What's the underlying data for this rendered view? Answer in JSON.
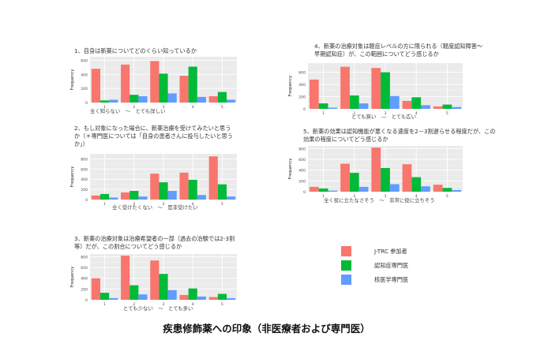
{
  "legend": [
    {
      "name": "J-TRC 参加者",
      "color": "#F8766D"
    },
    {
      "name": "認知症専門医",
      "color": "#00BA38"
    },
    {
      "name": "核医学専門医",
      "color": "#619CFF"
    }
  ],
  "caption": "疾患修飾薬への印象（非医療者および専門医）",
  "chart_data": [
    {
      "type": "bar",
      "title": "1、自身は新薬についてどのくらい知っているか",
      "xlabel": "全く知らない　～　とても詳しい",
      "ylabel": "Frequency",
      "categories": [
        "1",
        "2",
        "3",
        "4",
        "5"
      ],
      "ylim": [
        0,
        650
      ],
      "yticks": [
        0,
        200,
        400,
        600
      ],
      "series": [
        {
          "name": "J-TRC 参加者",
          "values": [
            480,
            540,
            590,
            380,
            90
          ]
        },
        {
          "name": "認知症専門医",
          "values": [
            30,
            110,
            410,
            510,
            150
          ]
        },
        {
          "name": "核医学専門医",
          "values": [
            40,
            90,
            130,
            80,
            40
          ]
        }
      ]
    },
    {
      "type": "bar",
      "title": "2、もし対象になった場合に、新薬治療を受けてみたいと思うか（＊専門医については「自身の患者さんに投与したいと思うか」）",
      "xlabel": "全く受けたくない　～　是非受けたい",
      "ylabel": "Frequency",
      "categories": [
        "1",
        "2",
        "3",
        "4",
        "5"
      ],
      "ylim": [
        0,
        900
      ],
      "yticks": [
        0,
        200,
        400,
        600,
        800
      ],
      "series": [
        {
          "name": "J-TRC 参加者",
          "values": [
            80,
            140,
            510,
            530,
            850
          ]
        },
        {
          "name": "認知症専門医",
          "values": [
            110,
            170,
            340,
            390,
            300
          ]
        },
        {
          "name": "核医学専門医",
          "values": [
            40,
            60,
            170,
            90,
            60
          ]
        }
      ]
    },
    {
      "type": "bar",
      "title": "3、新薬の治療対象は治療希望者の一部（過去の治験では2-3割等）だが、この割合についてどう感じるか",
      "xlabel": "とても少ない　～　とても多い",
      "ylabel": "Frequency",
      "categories": [
        "1",
        "2",
        "3",
        "4",
        "5"
      ],
      "ylim": [
        0,
        850
      ],
      "yticks": [
        0,
        200,
        400,
        600,
        800
      ],
      "series": [
        {
          "name": "J-TRC 参加者",
          "values": [
            400,
            820,
            730,
            90,
            50
          ]
        },
        {
          "name": "認知症専門医",
          "values": [
            130,
            270,
            480,
            210,
            110
          ]
        },
        {
          "name": "核医学専門医",
          "values": [
            30,
            100,
            180,
            60,
            30
          ]
        }
      ]
    },
    {
      "type": "bar",
      "title": "4、新薬の治療対象は軽症レベルの方に限られる（軽度認知障害～早期認知症）が、この範囲についてどう感じるか",
      "xlabel": "とても狭い　―　とても広い",
      "ylabel": "Frequency",
      "categories": [
        "1",
        "2",
        "3",
        "4",
        "5"
      ],
      "ylim": [
        0,
        750
      ],
      "yticks": [
        0,
        200,
        400,
        600
      ],
      "series": [
        {
          "name": "J-TRC 参加者",
          "values": [
            480,
            690,
            670,
            130,
            40
          ]
        },
        {
          "name": "認知症専門医",
          "values": [
            90,
            220,
            600,
            190,
            70
          ]
        },
        {
          "name": "核医学専門医",
          "values": [
            20,
            90,
            210,
            60,
            30
          ]
        }
      ]
    },
    {
      "type": "bar",
      "title": "5、新薬の効果は認知機能が悪くなる速度を2－3割遅らせる程度だが、この効果の程度についてどう感じるか",
      "xlabel": "全く役に立たなさそう　～　非常に役に立ちそう",
      "ylabel": "Frequency",
      "categories": [
        "1",
        "2",
        "3",
        "4",
        "5"
      ],
      "ylim": [
        0,
        850
      ],
      "yticks": [
        0,
        200,
        400,
        600,
        800
      ],
      "series": [
        {
          "name": "J-TRC 参加者",
          "values": [
            90,
            520,
            820,
            510,
            130
          ]
        },
        {
          "name": "認知症専門医",
          "values": [
            60,
            350,
            440,
            270,
            70
          ]
        },
        {
          "name": "核医学専門医",
          "values": [
            20,
            90,
            140,
            100,
            30
          ]
        }
      ]
    }
  ]
}
